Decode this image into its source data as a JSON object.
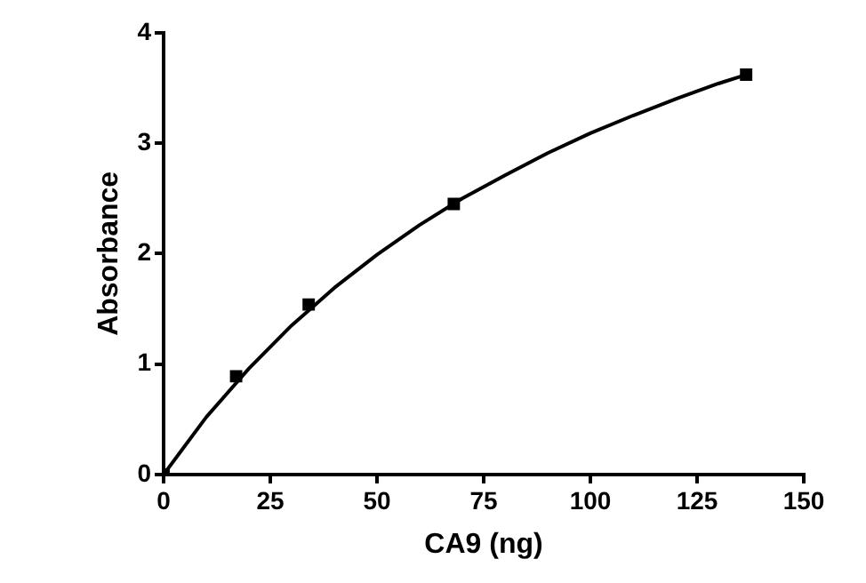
{
  "chart_data": {
    "type": "scatter",
    "xlabel": "CA9 (ng)",
    "ylabel": "Absorbance",
    "xlim": [
      0,
      150
    ],
    "xticks": [
      0,
      25,
      50,
      75,
      100,
      125,
      150
    ],
    "ylim": [
      0,
      4
    ],
    "yticks": [
      0,
      1,
      2,
      3,
      4
    ],
    "grid": false,
    "legend": false,
    "series": [
      {
        "color": "#000000",
        "marker": "square",
        "x": [
          0,
          17,
          34,
          68,
          136.5
        ],
        "values": [
          0,
          0.89,
          1.54,
          2.45,
          3.62
        ]
      },
      {
        "type": "line",
        "color": "#000000",
        "marker": "none",
        "line_style": "solid",
        "x": [
          0,
          10,
          20,
          30,
          40,
          50,
          60,
          70,
          80,
          90,
          100,
          110,
          120,
          130,
          136.5
        ],
        "values": [
          0,
          0.52,
          0.96,
          1.35,
          1.69,
          1.99,
          2.26,
          2.5,
          2.71,
          2.91,
          3.09,
          3.25,
          3.4,
          3.54,
          3.62
        ]
      }
    ]
  }
}
